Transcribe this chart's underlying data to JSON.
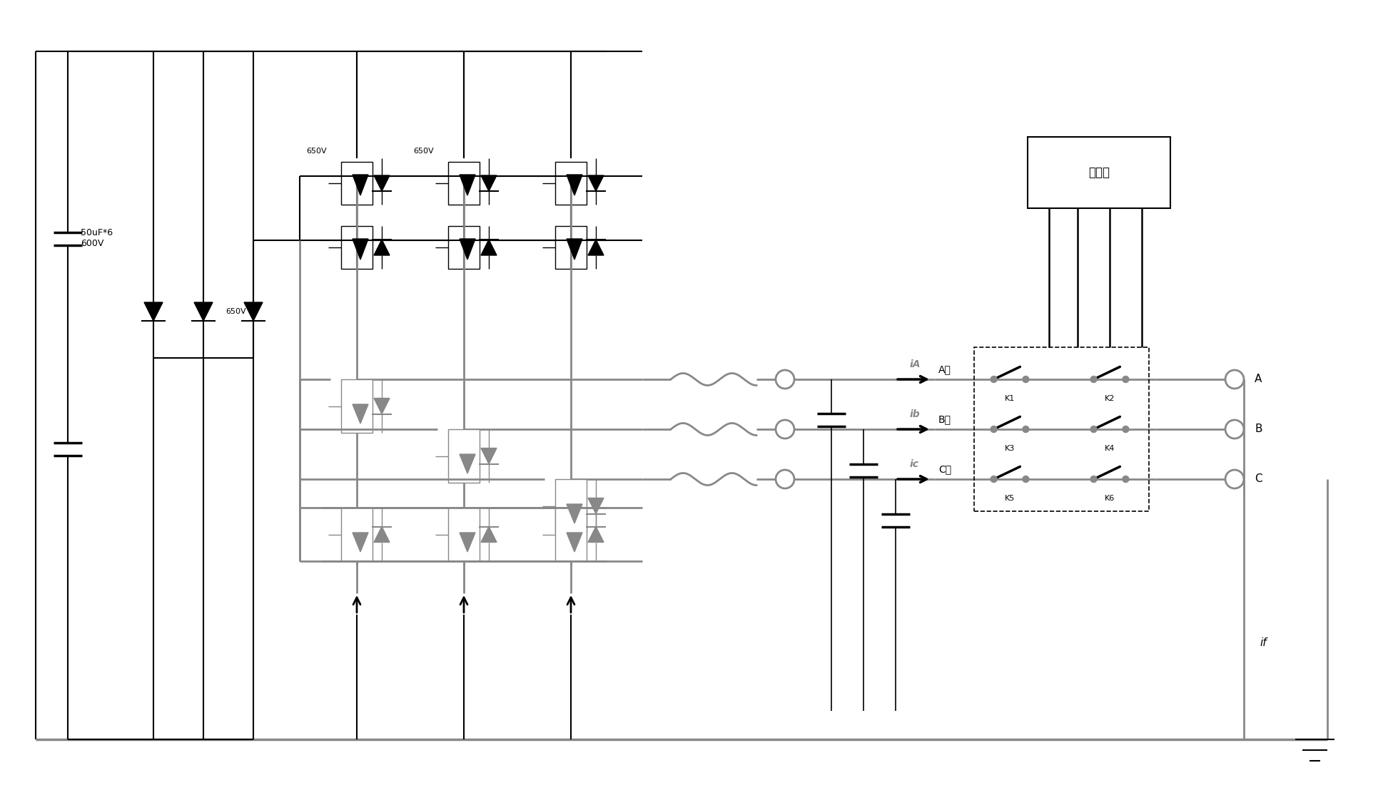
{
  "bg": "#ffffff",
  "bk": "#000000",
  "gr": "#888888",
  "figsize": [
    19.59,
    11.22
  ],
  "dpi": 100,
  "labels": {
    "cap_main": "50uF*6\n600V",
    "v650_1": "650V",
    "v650_2": "650V",
    "v650_3": "650V",
    "controller": "控制器",
    "iA": "iA",
    "ib": "ib",
    "ic": "ic",
    "Ag": "A组",
    "Bg": "B组",
    "Cg": "C组",
    "K1": "K1",
    "K2": "K2",
    "K3": "K3",
    "K4": "K4",
    "K5": "K5",
    "K6": "K6",
    "A": "A",
    "B": "B",
    "C": "C",
    "if_lbl": "if"
  }
}
